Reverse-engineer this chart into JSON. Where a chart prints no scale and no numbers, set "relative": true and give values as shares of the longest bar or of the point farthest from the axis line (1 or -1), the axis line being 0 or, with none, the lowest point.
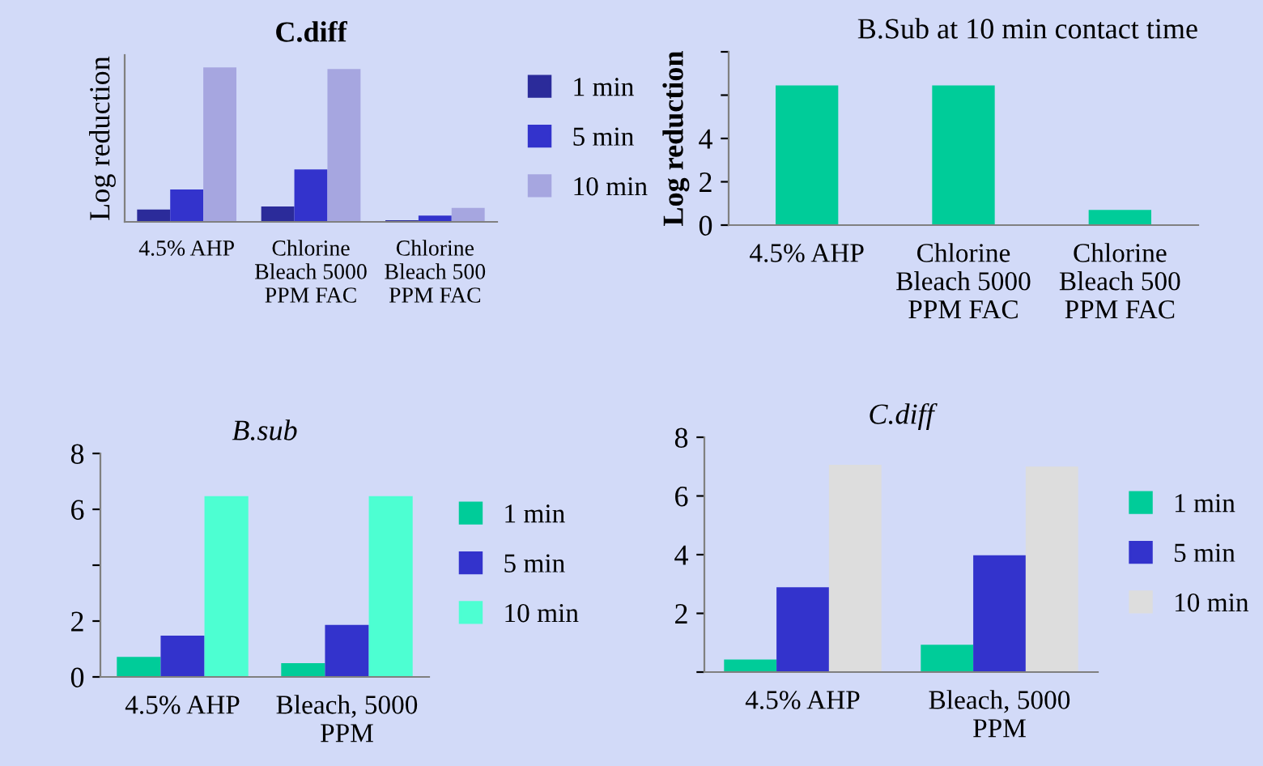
{
  "chart_data": [
    {
      "type": "bar",
      "title": "C.diff",
      "ylabel": "Log reduction",
      "relative": true,
      "legend": "right",
      "grid": false,
      "categories": [
        "4.5% AHP",
        "Chlorine\nBleach 5000\nPPM FAC",
        "Chlorine\nBleach 500\nPPM FAC"
      ],
      "series": [
        {
          "name": "1 min",
          "color": "#2b2b9a",
          "values": [
            0.08,
            0.1,
            0.01
          ]
        },
        {
          "name": "5 min",
          "color": "#3333cc",
          "values": [
            0.21,
            0.34,
            0.04
          ]
        },
        {
          "name": "10 min",
          "color": "#a6a6e0",
          "values": [
            1.0,
            0.99,
            0.09
          ]
        }
      ]
    },
    {
      "type": "bar",
      "title": "B.Sub at 10 min contact time",
      "ylabel": "Log reduction",
      "legend": false,
      "grid": false,
      "categories": [
        "4.5% AHP",
        "Chlorine\nBleach 5000\nPPM FAC",
        "Chlorine\nBleach 500\nPPM FAC"
      ],
      "ylim": [
        0,
        8
      ],
      "yticks": [
        0,
        2,
        4,
        {
          "value": 6,
          "label": null
        },
        {
          "value": 8,
          "label": null
        }
      ],
      "series": [
        {
          "color": "#00cc99",
          "values": [
            6.45,
            6.45,
            0.7
          ]
        }
      ]
    },
    {
      "type": "bar",
      "title": "B.sub",
      "legend": "right",
      "grid": false,
      "categories": [
        "4.5% AHP",
        "Bleach, 5000\nPPM"
      ],
      "ylim": [
        0,
        8
      ],
      "yticks": [
        0,
        2,
        {
          "value": 4,
          "label": null
        },
        6,
        8
      ],
      "series": [
        {
          "name": "1 min",
          "color": "#00cc99",
          "values": [
            0.72,
            0.49
          ]
        },
        {
          "name": "5 min",
          "color": "#3333cc",
          "values": [
            1.48,
            1.86
          ]
        },
        {
          "name": "10 min",
          "color": "#4dffd2",
          "values": [
            6.47,
            6.47
          ]
        }
      ]
    },
    {
      "type": "bar",
      "title": "C.diff",
      "legend": "right",
      "grid": false,
      "categories": [
        "4.5% AHP",
        "Bleach, 5000\nPPM"
      ],
      "ylim": [
        0,
        8
      ],
      "yticks": [
        {
          "value": 0,
          "label": null
        },
        2,
        4,
        6,
        8
      ],
      "series": [
        {
          "name": "1 min",
          "color": "#00cc99",
          "values": [
            0.43,
            0.93
          ]
        },
        {
          "name": "5 min",
          "color": "#3333cc",
          "values": [
            2.89,
            3.98
          ]
        },
        {
          "name": "10 min",
          "color": "#dddddd",
          "values": [
            7.06,
            7.0
          ]
        }
      ]
    }
  ]
}
